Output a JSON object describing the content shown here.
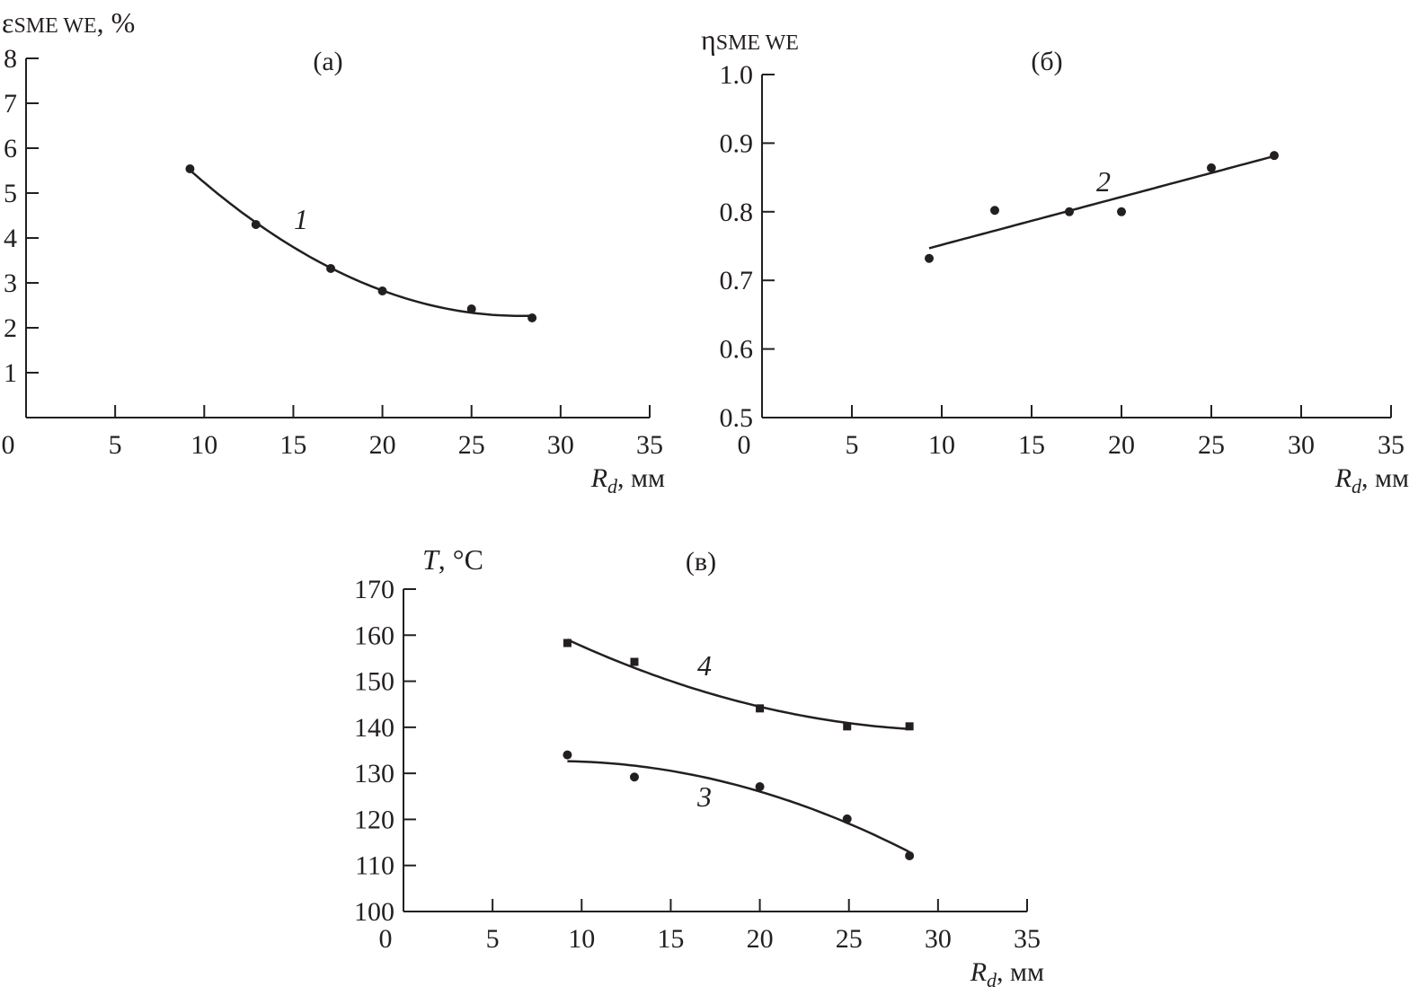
{
  "chart_data": [
    {
      "type": "line",
      "panel_label": "(a)",
      "ylabel_main": "ε",
      "ylabel_sub": "SME WE",
      "ylabel_unit": ", %",
      "xlabel_main": "R",
      "xlabel_sub": "d",
      "xlabel_unit": ", мм",
      "xlim": [
        0,
        35
      ],
      "ylim": [
        0,
        8
      ],
      "xticks": [
        0,
        5,
        10,
        15,
        20,
        25,
        30,
        35
      ],
      "yticks": [
        1,
        2,
        3,
        4,
        5,
        6,
        7,
        8
      ],
      "ytick_labels": [
        "1",
        "2",
        "3",
        "4",
        "5",
        "6",
        "7",
        "8"
      ],
      "x0_label": "0",
      "grid": false,
      "series": [
        {
          "name": "1",
          "marker": "circle",
          "fit": "quadratic",
          "x": [
            9.2,
            12.9,
            17.1,
            20.0,
            25.0,
            28.4
          ],
          "y": [
            5.54,
            4.3,
            3.32,
            2.82,
            2.42,
            2.22
          ]
        }
      ]
    },
    {
      "type": "line",
      "panel_label": "(б)",
      "ylabel_main": "η",
      "ylabel_sub": "SME WE",
      "ylabel_unit": "",
      "xlabel_main": "R",
      "xlabel_sub": "d",
      "xlabel_unit": ", мм",
      "xlim": [
        0,
        35
      ],
      "ylim": [
        0.5,
        1.0
      ],
      "xticks": [
        0,
        5,
        10,
        15,
        20,
        25,
        30,
        35
      ],
      "yticks": [
        0.5,
        0.6,
        0.7,
        0.8,
        0.9,
        1.0
      ],
      "ytick_labels": [
        "0.5",
        "0.6",
        "0.7",
        "0.8",
        "0.9",
        "1.0"
      ],
      "grid": false,
      "series": [
        {
          "name": "2",
          "marker": "circle",
          "fit": "linear",
          "x": [
            9.3,
            12.95,
            17.1,
            20.0,
            25.0,
            28.5
          ],
          "y": [
            0.732,
            0.802,
            0.8,
            0.8,
            0.864,
            0.882
          ]
        }
      ]
    },
    {
      "type": "line",
      "panel_label": "(в)",
      "ylabel_main": "T",
      "ylabel_sub": "",
      "ylabel_unit": ", °C",
      "xlabel_main": "R",
      "xlabel_sub": "d",
      "xlabel_unit": ", мм",
      "xlim": [
        0,
        35
      ],
      "ylim": [
        100,
        170
      ],
      "xticks": [
        0,
        5,
        10,
        15,
        20,
        25,
        30,
        35
      ],
      "yticks": [
        100,
        110,
        120,
        130,
        140,
        150,
        160,
        170
      ],
      "ytick_labels": [
        "100",
        "110",
        "120",
        "130",
        "140",
        "150",
        "160",
        "170"
      ],
      "grid": false,
      "series": [
        {
          "name": "4",
          "marker": "square",
          "fit": "quadratic",
          "x": [
            9.2,
            12.96,
            20.0,
            24.9,
            28.4
          ],
          "y": [
            158.3,
            154.2,
            144.1,
            140.2,
            140.2
          ]
        },
        {
          "name": "3",
          "marker": "circle",
          "fit": "quadratic",
          "x": [
            9.2,
            12.96,
            20.0,
            24.9,
            28.4
          ],
          "y": [
            134.0,
            129.2,
            127.1,
            120.1,
            112.1
          ]
        }
      ]
    }
  ]
}
